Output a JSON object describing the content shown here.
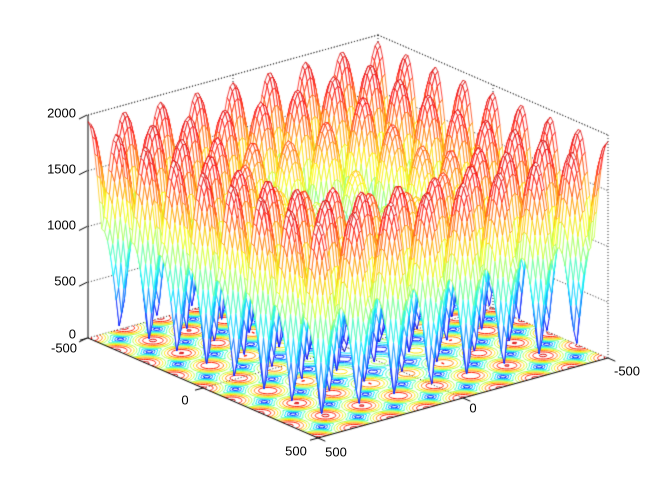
{
  "figure": {
    "background": "#ffffff",
    "kind": "MATLAB-style 3D figure"
  },
  "chart_data": {
    "type": "surface",
    "render_style": "3d-mesh-wireframe-with-floor-contour (meshc style)",
    "title": "",
    "xlabel": "",
    "ylabel": "",
    "zlabel": "",
    "colormap": "jet",
    "grid": "dotted",
    "legend": "none",
    "view": {
      "azimuth": -37.5,
      "elevation": 30
    },
    "axes": {
      "x_range": [
        -500,
        500
      ],
      "y_range": [
        -500,
        500
      ],
      "z_range": [
        0,
        2000
      ],
      "z_ticks": [
        0,
        500,
        1000,
        1500,
        2000
      ],
      "z_tick_labels": [
        "0",
        "500",
        "1000",
        "1500",
        "2000"
      ],
      "left_axis_tick_labels": [
        "500",
        "0",
        "-500"
      ],
      "right_axis_tick_labels": [
        "500",
        "0",
        "-500"
      ]
    },
    "surface": {
      "description": "Grid of smooth peaks spaced 125 units apart with sharp creases and isolated zero-valued pits between them; peak heights vary from ~900 near the center to ~1950 on a ring around it; global max ~1950, min 0.",
      "formula_model": "z(x,y) = (A/2) * m(r) * (|cos(pi*x/s)| + |cos(pi*y/s)|), m(r) = base - depth*exp(-(r/sigma)^2)",
      "amplitude": 2000,
      "peak_spacing": 125,
      "envelope": {
        "base": 0.97,
        "depth": 0.52,
        "sigma": 230
      },
      "z_max_observed": 1940,
      "z_min_observed": 0,
      "grid_points": 101
    },
    "contour": {
      "plane": "z=0 floor",
      "levels": [
        100,
        300,
        500,
        700,
        900,
        1100,
        1300,
        1500,
        1700,
        1900
      ],
      "level_colors_from": "jet(level/2000)"
    }
  }
}
